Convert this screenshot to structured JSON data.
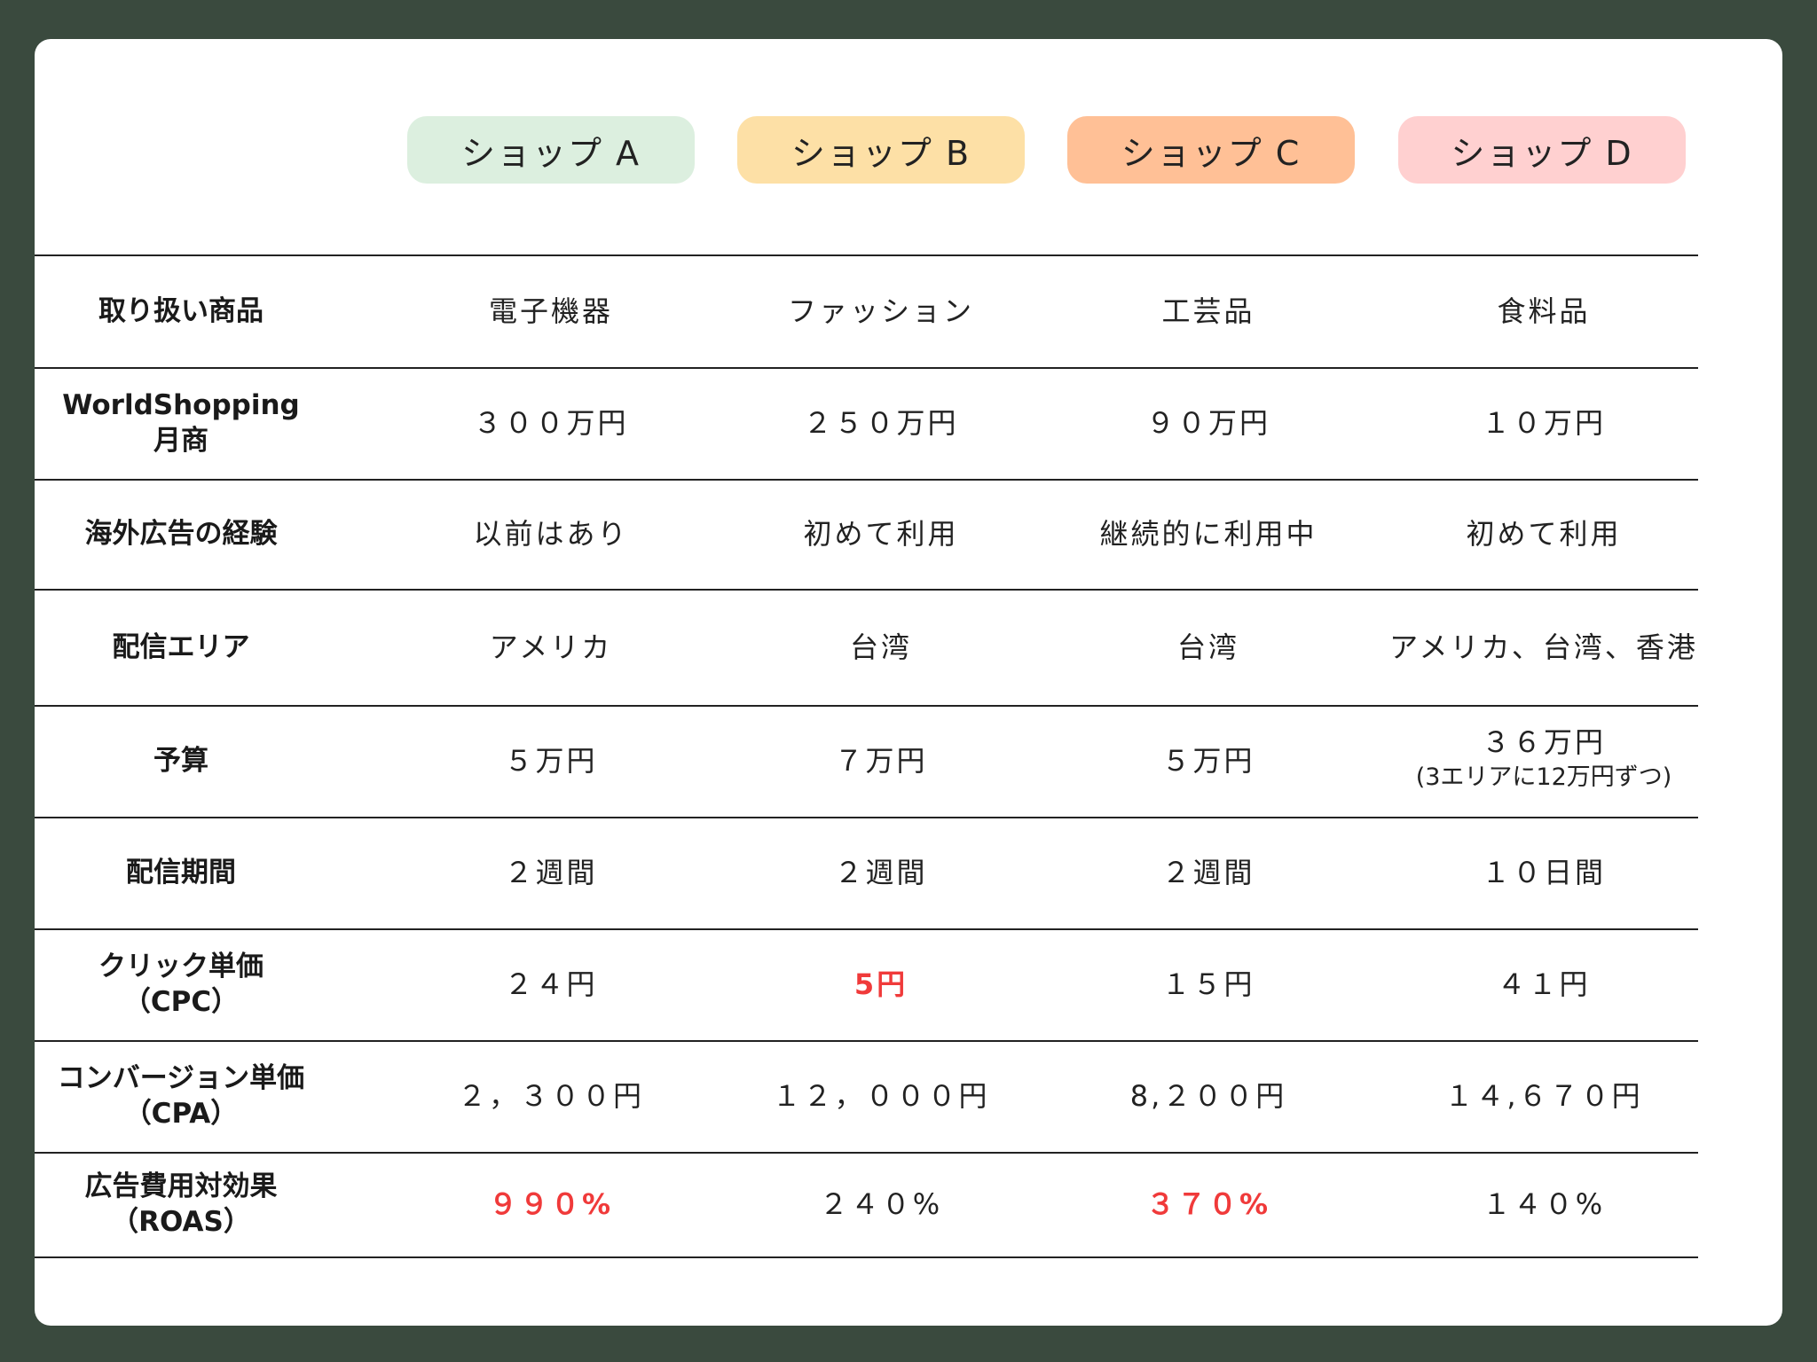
{
  "shops": [
    {
      "name": "ショップ A",
      "color": "#dcefdf"
    },
    {
      "name": "ショップ B",
      "color": "#fde0a6"
    },
    {
      "name": "ショップ C",
      "color": "#ffc096"
    },
    {
      "name": "ショップ D",
      "color": "#ffd0d0"
    }
  ],
  "rows": [
    {
      "label": "取り扱い商品",
      "cells": [
        "電子機器",
        "ファッション",
        "工芸品",
        "食料品"
      ]
    },
    {
      "label": "WorldShopping\n月商",
      "cells": [
        "３００万円",
        "２５０万円",
        "９０万円",
        "１０万円"
      ]
    },
    {
      "label": "海外広告の経験",
      "cells": [
        "以前はあり",
        "初めて利用",
        "継続的に利用中",
        "初めて利用"
      ]
    },
    {
      "label": "配信エリア",
      "cells": [
        "アメリカ",
        "台湾",
        "台湾",
        "アメリカ、台湾、香港"
      ]
    },
    {
      "label": "予算",
      "cells": [
        "５万円",
        "７万円",
        "５万円",
        "３６万円"
      ],
      "note_d": "(3エリアに12万円ずつ)"
    },
    {
      "label": "配信期間",
      "cells": [
        "２週間",
        "２週間",
        "２週間",
        "１０日間"
      ]
    },
    {
      "label": "クリック単価\n（CPC）",
      "cells": [
        "２４円",
        "5円",
        "１５円",
        "４１円"
      ],
      "highlight": [
        1
      ]
    },
    {
      "label": "コンバージョン単価\n（CPA）",
      "cells": [
        "２，３００円",
        "１２，０００円",
        "8,２００円",
        "１４,６７０円"
      ]
    },
    {
      "label": "広告費用対効果\n（ROAS）",
      "cells": [
        "９９０%",
        "２４０%",
        "３７０%",
        "１４０%"
      ],
      "highlight": [
        0,
        2
      ]
    }
  ],
  "highlight_color": "#f03a3a"
}
